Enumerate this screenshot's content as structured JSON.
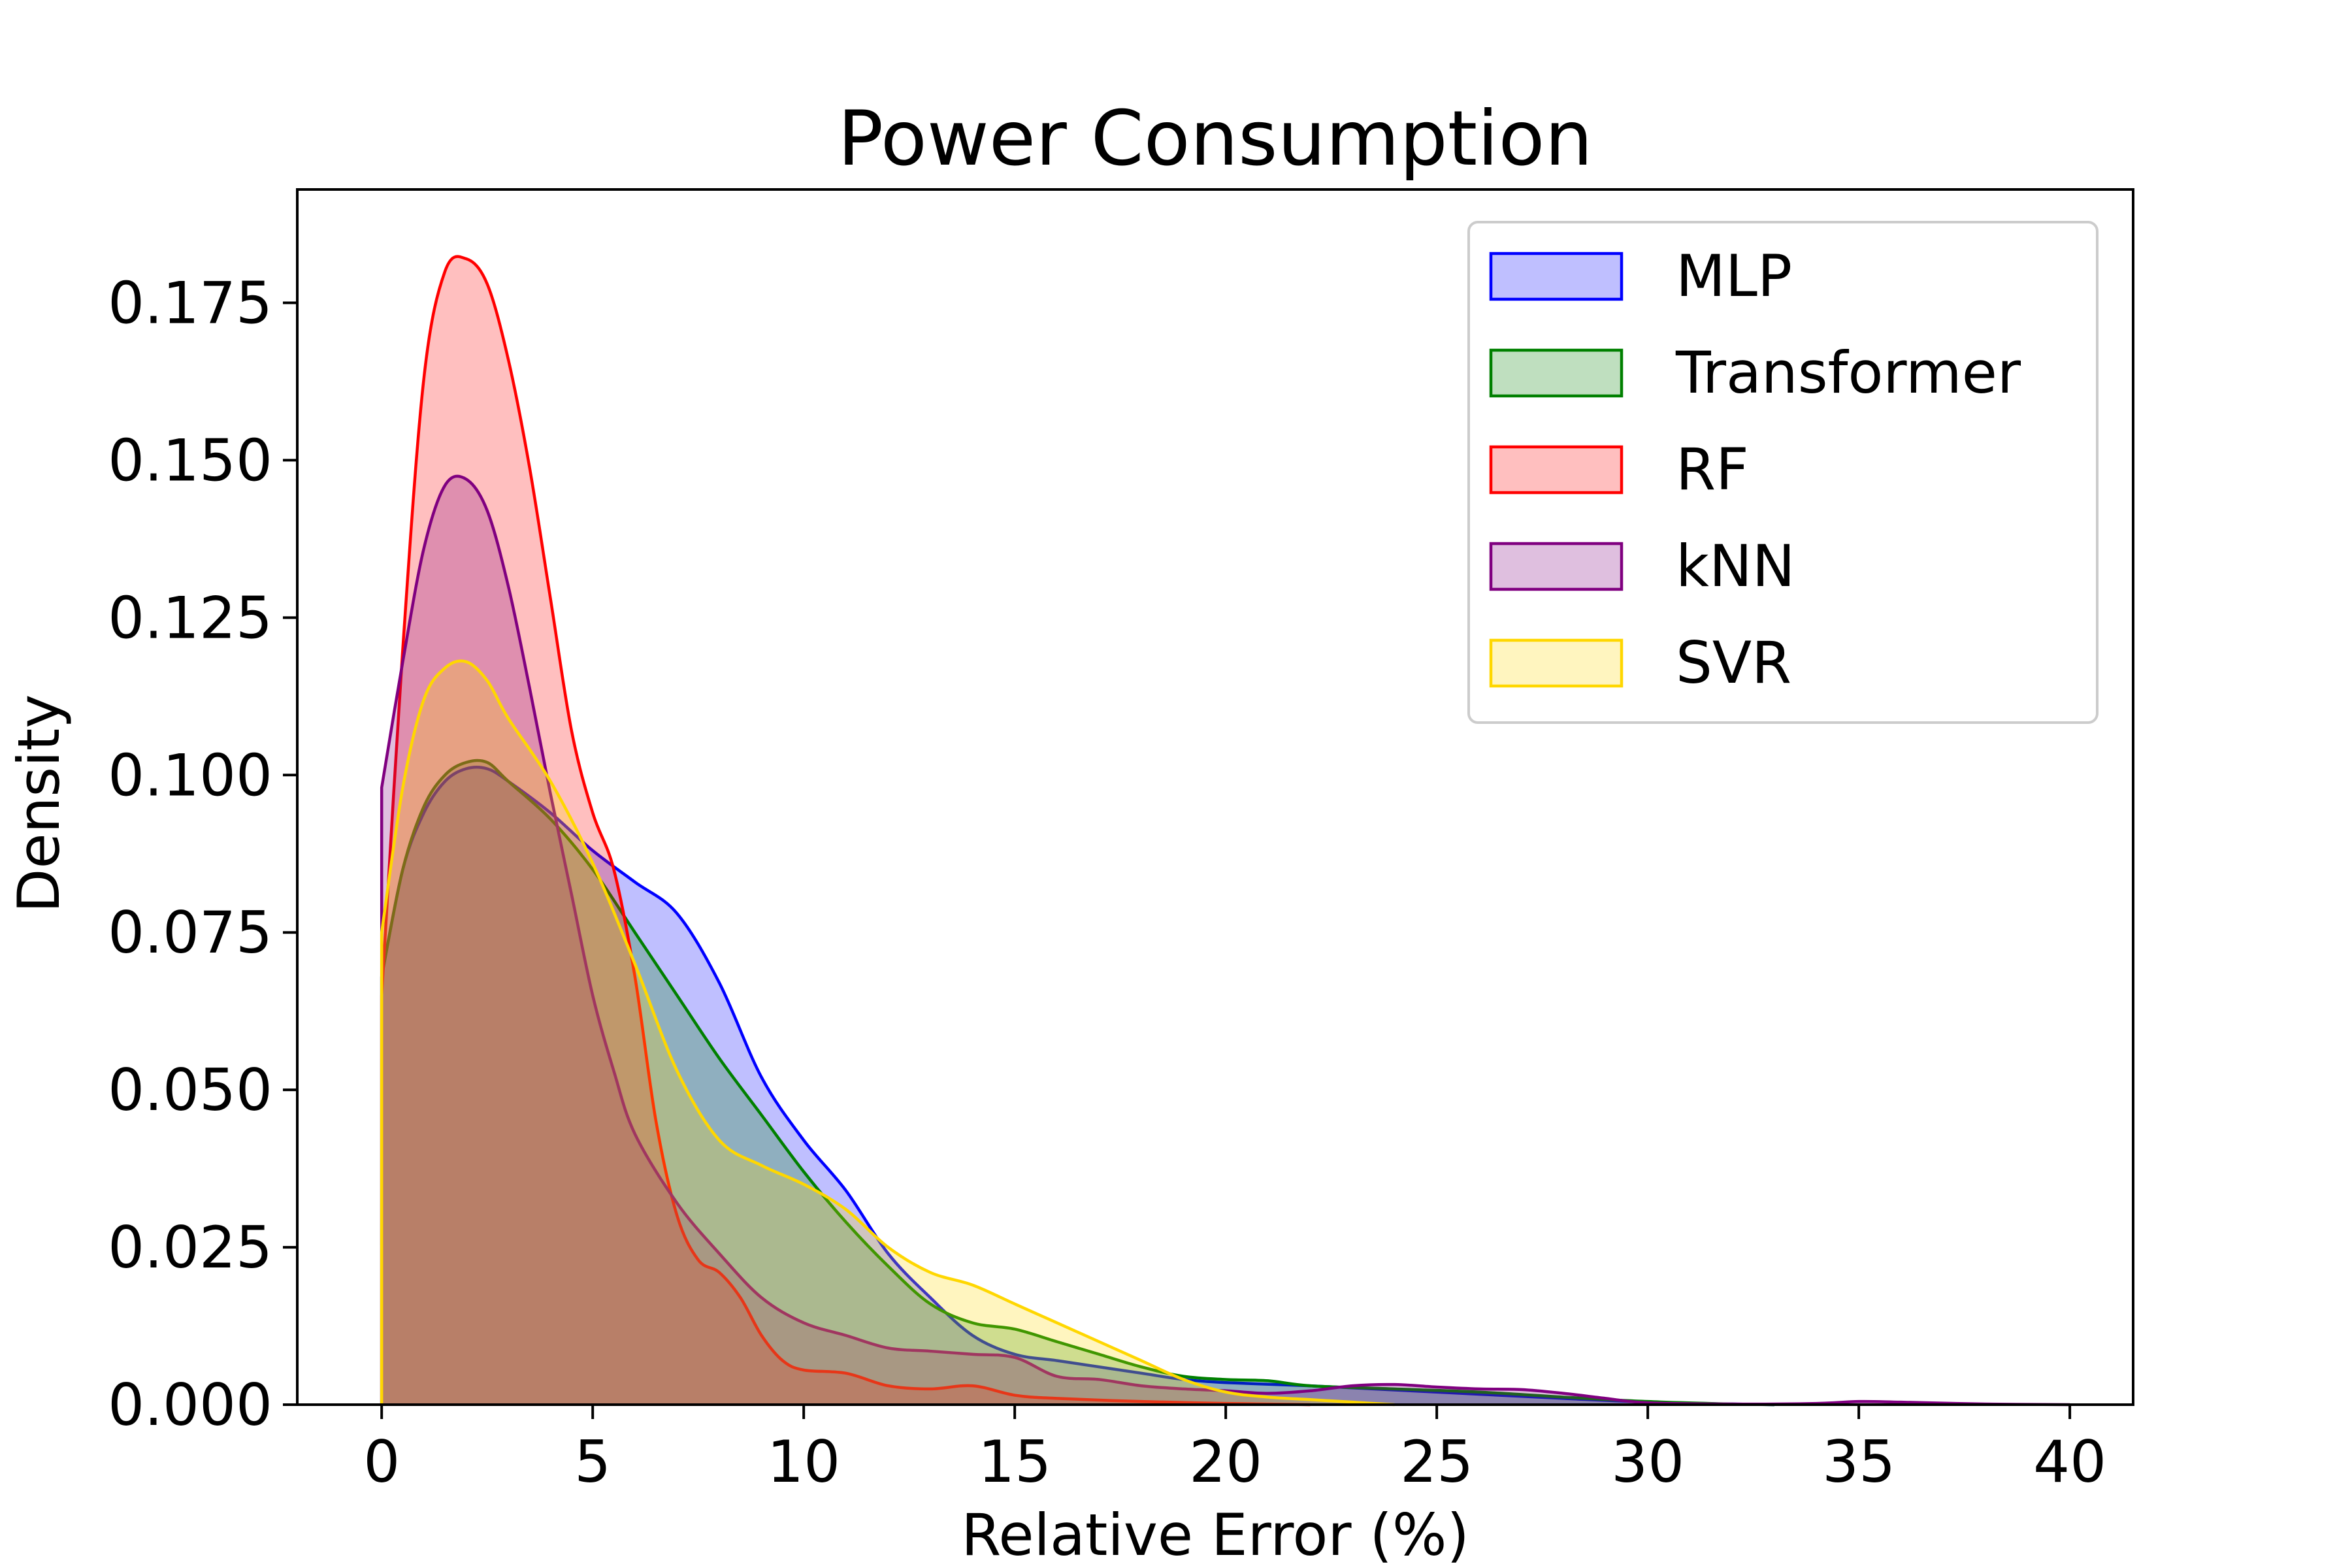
{
  "chart_data": {
    "type": "area",
    "title": "Power Consumption",
    "xlabel": "Relative Error (%)",
    "ylabel": "Density",
    "xlim": [
      -2,
      41.5
    ],
    "ylim": [
      0,
      0.193
    ],
    "x_ticks": [
      0,
      5,
      10,
      15,
      20,
      25,
      30,
      35,
      40
    ],
    "y_ticks": [
      0.0,
      0.025,
      0.05,
      0.075,
      0.1,
      0.125,
      0.15,
      0.175
    ],
    "x_tick_labels": [
      "0",
      "5",
      "10",
      "15",
      "20",
      "25",
      "30",
      "35",
      "40"
    ],
    "y_tick_labels": [
      "0.000",
      "0.025",
      "0.050",
      "0.075",
      "0.100",
      "0.125",
      "0.150",
      "0.175"
    ],
    "grid": false,
    "legend_position": "top-right",
    "series": [
      {
        "name": "MLP",
        "color": "#0000ff",
        "fill_opacity": 0.25,
        "points": [
          [
            0,
            0.068
          ],
          [
            0.5,
            0.085
          ],
          [
            1,
            0.094
          ],
          [
            1.5,
            0.099
          ],
          [
            2,
            0.101
          ],
          [
            2.5,
            0.101
          ],
          [
            3,
            0.099
          ],
          [
            4,
            0.094
          ],
          [
            5,
            0.088
          ],
          [
            6,
            0.083
          ],
          [
            7,
            0.078
          ],
          [
            8,
            0.067
          ],
          [
            9,
            0.052
          ],
          [
            10,
            0.042
          ],
          [
            11,
            0.034
          ],
          [
            12,
            0.024
          ],
          [
            13,
            0.017
          ],
          [
            14,
            0.011
          ],
          [
            15,
            0.008
          ],
          [
            16,
            0.007
          ],
          [
            17,
            0.006
          ],
          [
            18,
            0.005
          ],
          [
            19,
            0.004
          ],
          [
            20,
            0.0035
          ],
          [
            22,
            0.003
          ],
          [
            25,
            0.002
          ],
          [
            28,
            0.001
          ],
          [
            30,
            0.0004
          ],
          [
            32,
            0.0001
          ],
          [
            33,
            0
          ]
        ]
      },
      {
        "name": "Transformer",
        "color": "#008000",
        "fill_opacity": 0.25,
        "points": [
          [
            0,
            0.068
          ],
          [
            0.5,
            0.085
          ],
          [
            1,
            0.095
          ],
          [
            1.5,
            0.1
          ],
          [
            2,
            0.102
          ],
          [
            2.5,
            0.102
          ],
          [
            3,
            0.099
          ],
          [
            4,
            0.093
          ],
          [
            5,
            0.085
          ],
          [
            6,
            0.075
          ],
          [
            7,
            0.065
          ],
          [
            8,
            0.055
          ],
          [
            9,
            0.046
          ],
          [
            10,
            0.037
          ],
          [
            11,
            0.029
          ],
          [
            12,
            0.022
          ],
          [
            13,
            0.016
          ],
          [
            14,
            0.013
          ],
          [
            15,
            0.012
          ],
          [
            16,
            0.01
          ],
          [
            17,
            0.008
          ],
          [
            18,
            0.006
          ],
          [
            19,
            0.0045
          ],
          [
            20,
            0.004
          ],
          [
            21,
            0.0038
          ],
          [
            22,
            0.003
          ],
          [
            24,
            0.0025
          ],
          [
            26,
            0.002
          ],
          [
            28,
            0.0012
          ],
          [
            30,
            0.0005
          ],
          [
            32,
            0.0001
          ],
          [
            33,
            0
          ]
        ]
      },
      {
        "name": "RF",
        "color": "#ff0000",
        "fill_opacity": 0.25,
        "points": [
          [
            0,
            0.065
          ],
          [
            0.5,
            0.12
          ],
          [
            1,
            0.163
          ],
          [
            1.5,
            0.18
          ],
          [
            2,
            0.182
          ],
          [
            2.5,
            0.178
          ],
          [
            3,
            0.166
          ],
          [
            3.5,
            0.149
          ],
          [
            4,
            0.128
          ],
          [
            4.5,
            0.107
          ],
          [
            5,
            0.094
          ],
          [
            5.5,
            0.085
          ],
          [
            6,
            0.068
          ],
          [
            6.5,
            0.045
          ],
          [
            7,
            0.03
          ],
          [
            7.5,
            0.023
          ],
          [
            8,
            0.021
          ],
          [
            8.5,
            0.017
          ],
          [
            9,
            0.011
          ],
          [
            9.5,
            0.007
          ],
          [
            10,
            0.0055
          ],
          [
            11,
            0.005
          ],
          [
            12,
            0.003
          ],
          [
            13,
            0.0025
          ],
          [
            14,
            0.003
          ],
          [
            15,
            0.0015
          ],
          [
            16,
            0.001
          ],
          [
            18,
            0.0005
          ],
          [
            20,
            0.0002
          ],
          [
            22,
            0
          ]
        ]
      },
      {
        "name": "kNN",
        "color": "#800080",
        "fill_opacity": 0.25,
        "points": [
          [
            0,
            0.098
          ],
          [
            0.5,
            0.118
          ],
          [
            1,
            0.136
          ],
          [
            1.5,
            0.146
          ],
          [
            2,
            0.147
          ],
          [
            2.5,
            0.142
          ],
          [
            3,
            0.13
          ],
          [
            3.5,
            0.114
          ],
          [
            4,
            0.097
          ],
          [
            4.5,
            0.081
          ],
          [
            5,
            0.065
          ],
          [
            5.5,
            0.053
          ],
          [
            6,
            0.043
          ],
          [
            7,
            0.032
          ],
          [
            8,
            0.024
          ],
          [
            9,
            0.017
          ],
          [
            10,
            0.013
          ],
          [
            11,
            0.011
          ],
          [
            12,
            0.009
          ],
          [
            13,
            0.0085
          ],
          [
            14,
            0.008
          ],
          [
            15,
            0.0075
          ],
          [
            16,
            0.0045
          ],
          [
            17,
            0.004
          ],
          [
            18,
            0.003
          ],
          [
            19,
            0.0025
          ],
          [
            20,
            0.0022
          ],
          [
            21,
            0.0018
          ],
          [
            22,
            0.0022
          ],
          [
            23,
            0.003
          ],
          [
            24,
            0.0032
          ],
          [
            25,
            0.0028
          ],
          [
            26,
            0.0025
          ],
          [
            27,
            0.0024
          ],
          [
            28,
            0.0018
          ],
          [
            29,
            0.001
          ],
          [
            30,
            0.0003
          ],
          [
            32,
            0.0001
          ],
          [
            34,
            0.0002
          ],
          [
            35,
            0.0005
          ],
          [
            36,
            0.0004
          ],
          [
            38,
            0.0001
          ],
          [
            40,
            0
          ]
        ]
      },
      {
        "name": "SVR",
        "color": "#ffd700",
        "fill_opacity": 0.25,
        "points": [
          [
            0,
            0.075
          ],
          [
            0.5,
            0.098
          ],
          [
            1,
            0.112
          ],
          [
            1.5,
            0.117
          ],
          [
            2,
            0.118
          ],
          [
            2.5,
            0.115
          ],
          [
            3,
            0.109
          ],
          [
            4,
            0.099
          ],
          [
            5,
            0.086
          ],
          [
            6,
            0.07
          ],
          [
            7,
            0.053
          ],
          [
            8,
            0.042
          ],
          [
            9,
            0.038
          ],
          [
            10,
            0.035
          ],
          [
            11,
            0.031
          ],
          [
            12,
            0.025
          ],
          [
            13,
            0.021
          ],
          [
            14,
            0.019
          ],
          [
            15,
            0.016
          ],
          [
            16,
            0.013
          ],
          [
            17,
            0.01
          ],
          [
            18,
            0.007
          ],
          [
            19,
            0.004
          ],
          [
            20,
            0.002
          ],
          [
            21,
            0.0012
          ],
          [
            22,
            0.0008
          ],
          [
            23,
            0.0004
          ],
          [
            24,
            0
          ]
        ]
      }
    ]
  }
}
